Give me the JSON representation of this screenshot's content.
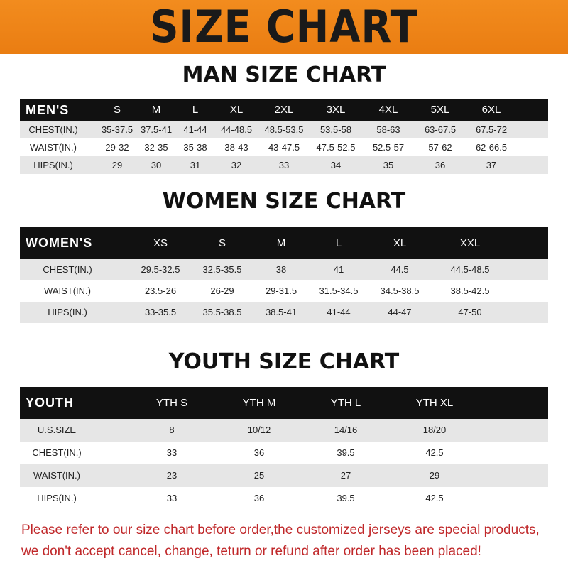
{
  "banner": {
    "title": "SIZE CHART"
  },
  "men": {
    "title": "MAN SIZE CHART",
    "header": [
      "MEN'S",
      "S",
      "M",
      "L",
      "XL",
      "2XL",
      "3XL",
      "4XL",
      "5XL",
      "6XL"
    ],
    "rows": [
      [
        "CHEST(IN.)",
        "35-37.5",
        "37.5-41",
        "41-44",
        "44-48.5",
        "48.5-53.5",
        "53.5-58",
        "58-63",
        "63-67.5",
        "67.5-72"
      ],
      [
        "WAIST(IN.)",
        "29-32",
        "32-35",
        "35-38",
        "38-43",
        "43-47.5",
        "47.5-52.5",
        "52.5-57",
        "57-62",
        "62-66.5"
      ],
      [
        "HIPS(IN.)",
        "29",
        "30",
        "31",
        "32",
        "33",
        "34",
        "35",
        "36",
        "37"
      ]
    ]
  },
  "women": {
    "title": "WOMEN SIZE CHART",
    "header": [
      "WOMEN'S",
      "XS",
      "S",
      "M",
      "L",
      "XL",
      "XXL"
    ],
    "rows": [
      [
        "CHEST(IN.)",
        "29.5-32.5",
        "32.5-35.5",
        "38",
        "41",
        "44.5",
        "44.5-48.5"
      ],
      [
        "WAIST(IN.)",
        "23.5-26",
        "26-29",
        "29-31.5",
        "31.5-34.5",
        "34.5-38.5",
        "38.5-42.5"
      ],
      [
        "HIPS(IN.)",
        "33-35.5",
        "35.5-38.5",
        "38.5-41",
        "41-44",
        "44-47",
        "47-50"
      ]
    ]
  },
  "youth": {
    "title": "YOUTH SIZE CHART",
    "header": [
      "YOUTH",
      "YTH S",
      "YTH M",
      "YTH L",
      "YTH XL"
    ],
    "rows": [
      [
        "U.S.SIZE",
        "8",
        "10/12",
        "14/16",
        "18/20"
      ],
      [
        "CHEST(IN.)",
        "33",
        "36",
        "39.5",
        "42.5"
      ],
      [
        "WAIST(IN.)",
        "23",
        "25",
        "27",
        "29"
      ],
      [
        "HIPS(IN.)",
        "33",
        "36",
        "39.5",
        "42.5"
      ]
    ]
  },
  "footer": {
    "line1": "Please refer to our size chart before order,the customized jerseys are special products,",
    "line2": "we don't accept cancel, change, teturn or refund after order has been placed!"
  }
}
